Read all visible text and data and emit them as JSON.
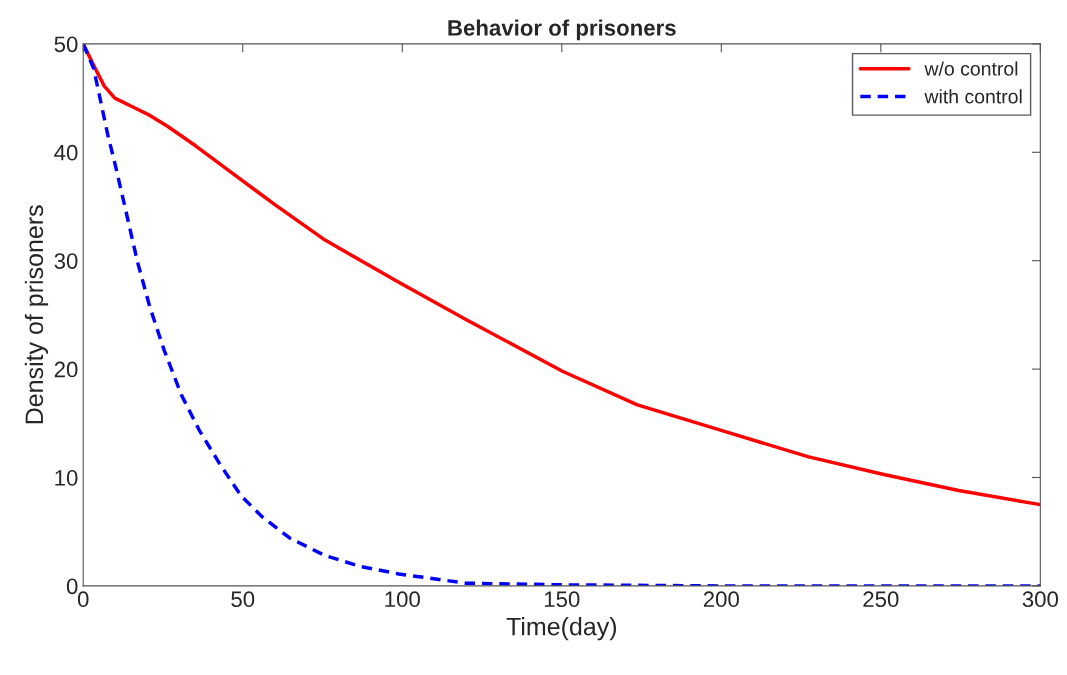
{
  "chart_data": {
    "type": "line",
    "title": "Behavior of prisoners",
    "xlabel": "Time(day)",
    "ylabel": "Density of prisoners",
    "xlim": [
      0,
      300
    ],
    "ylim": [
      0,
      50
    ],
    "xticks": [
      0,
      50,
      100,
      150,
      200,
      250,
      300
    ],
    "yticks": [
      0,
      10,
      20,
      30,
      40,
      50
    ],
    "grid": false,
    "legend": "top right",
    "marker": "none",
    "series": [
      {
        "name": "w/o control",
        "color": "#ff0000",
        "line_style": "solid",
        "x": [
          0,
          3.3,
          6.6,
          9.9,
          15.4,
          20.9,
          26.4,
          35.2,
          48.4,
          60.4,
          75.8,
          98.9,
          119.8,
          150.2,
          173.7,
          200.5,
          227.4,
          250.6,
          274.4,
          300
        ],
        "values": [
          50,
          48,
          46.1,
          45,
          44.2,
          43.4,
          42.4,
          40.6,
          37.7,
          35.1,
          31.9,
          28,
          24.6,
          19.8,
          16.7,
          14.3,
          11.9,
          10.3,
          8.8,
          7.5
        ]
      },
      {
        "name": "with control",
        "color": "#0000ff",
        "line_style": "dashed",
        "x": [
          0,
          3.3,
          7.7,
          9.9,
          13.2,
          17,
          20.9,
          25.3,
          30.8,
          36.3,
          42.9,
          49.5,
          56,
          64.8,
          75.8,
          86.8,
          98.9,
          120,
          150,
          200,
          250,
          300
        ],
        "values": [
          50,
          47.7,
          41.6,
          39,
          34.8,
          29.9,
          25.7,
          21.8,
          17.6,
          14.4,
          11.2,
          8.3,
          6.4,
          4.4,
          2.8,
          1.8,
          1.1,
          0.25,
          0.1,
          0,
          0,
          0
        ]
      }
    ]
  }
}
